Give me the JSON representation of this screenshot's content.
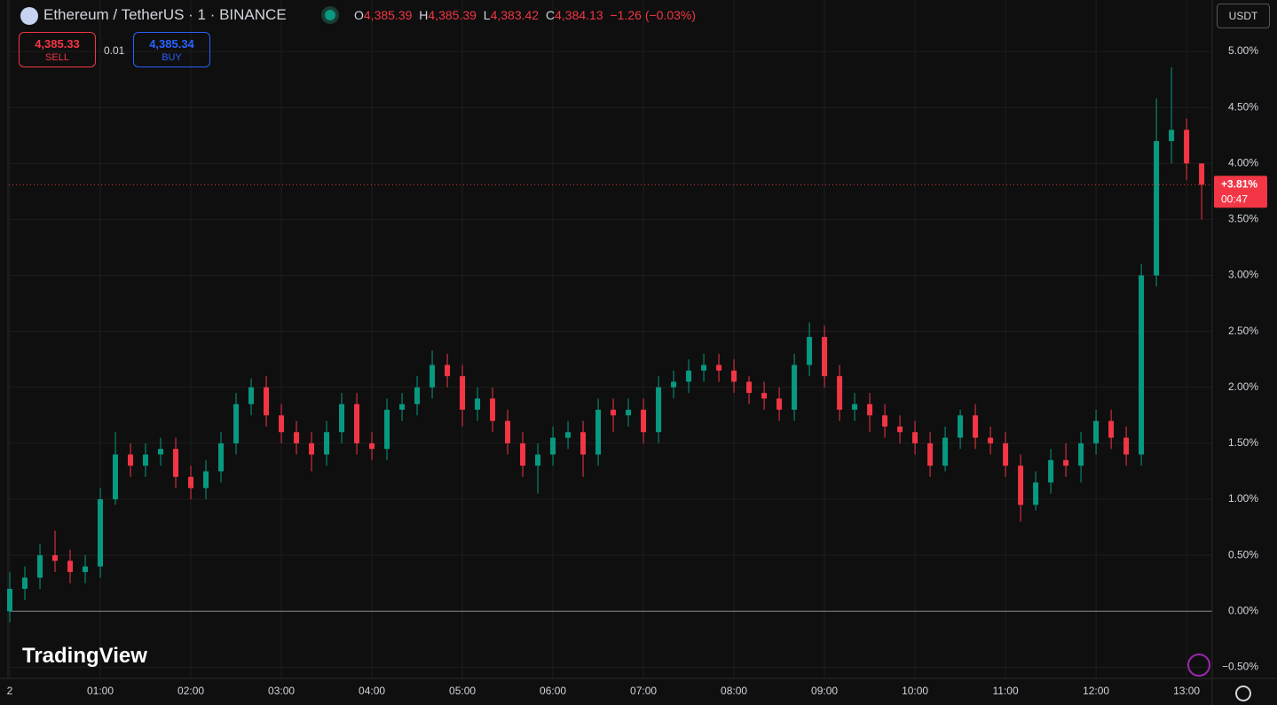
{
  "header": {
    "symbol": "Ethereum / TetherUS · 1 · BINANCE",
    "ohlc": [
      {
        "key": "O",
        "value": "4,385.39"
      },
      {
        "key": "H",
        "value": "4,385.39"
      },
      {
        "key": "L",
        "value": "4,383.42"
      },
      {
        "key": "C",
        "value": "4,384.13"
      }
    ],
    "change": "−1.26 (−0.03%)"
  },
  "trade": {
    "sell_price": "4,385.33",
    "sell": "SELL",
    "spread": "0.01",
    "buy_price": "4,385.34",
    "buy": "BUY"
  },
  "currency": "USDT",
  "brand": "TradingView",
  "chart_data": {
    "type": "candlestick",
    "x": [
      0,
      10,
      20,
      30,
      40,
      50,
      60,
      70,
      80,
      90,
      100,
      110,
      120,
      130,
      140,
      150,
      160,
      170,
      180,
      190,
      200,
      210,
      220,
      230,
      240,
      250,
      260,
      270,
      280,
      290,
      300,
      310,
      320,
      330,
      340,
      350,
      360,
      370,
      380,
      390,
      400,
      410,
      420,
      430,
      440,
      450,
      460,
      470,
      480,
      490,
      500,
      510,
      520,
      530,
      540,
      550,
      560,
      570,
      580,
      590,
      600,
      610,
      620,
      630,
      640,
      650,
      660,
      670,
      680,
      690,
      700,
      710,
      720,
      730,
      740,
      750,
      760,
      770,
      780,
      790
    ],
    "candles": {
      "open": [
        0,
        0.2,
        0.3,
        0.5,
        0.45,
        0.35,
        0.4,
        1.0,
        1.4,
        1.3,
        1.4,
        1.45,
        1.2,
        1.1,
        1.25,
        1.5,
        1.85,
        2.0,
        1.75,
        1.6,
        1.5,
        1.4,
        1.6,
        1.85,
        1.5,
        1.45,
        1.8,
        1.85,
        2.0,
        2.2,
        2.1,
        1.8,
        1.9,
        1.7,
        1.5,
        1.3,
        1.4,
        1.55,
        1.6,
        1.4,
        1.8,
        1.75,
        1.8,
        1.6,
        2.0,
        2.05,
        2.15,
        2.2,
        2.15,
        2.05,
        1.95,
        1.9,
        1.8,
        2.2,
        2.45,
        2.1,
        1.8,
        1.85,
        1.75,
        1.65,
        1.6,
        1.5,
        1.3,
        1.55,
        1.75,
        1.55,
        1.5,
        1.3,
        0.95,
        1.15,
        1.35,
        1.3,
        1.5,
        1.7,
        1.55,
        1.4,
        3.0,
        4.2,
        4.3,
        4.0
      ],
      "high": [
        0.35,
        0.4,
        0.6,
        0.72,
        0.55,
        0.5,
        1.1,
        1.6,
        1.5,
        1.5,
        1.55,
        1.55,
        1.3,
        1.35,
        1.6,
        1.95,
        2.08,
        2.1,
        1.85,
        1.7,
        1.6,
        1.7,
        1.95,
        1.95,
        1.6,
        1.9,
        1.95,
        2.1,
        2.33,
        2.3,
        2.2,
        2.0,
        2.0,
        1.8,
        1.6,
        1.5,
        1.65,
        1.7,
        1.7,
        1.9,
        1.9,
        1.9,
        1.9,
        2.1,
        2.15,
        2.25,
        2.3,
        2.3,
        2.25,
        2.1,
        2.05,
        2.0,
        2.3,
        2.58,
        2.55,
        2.2,
        1.95,
        1.95,
        1.85,
        1.75,
        1.7,
        1.6,
        1.65,
        1.8,
        1.85,
        1.65,
        1.6,
        1.4,
        1.25,
        1.45,
        1.5,
        1.6,
        1.8,
        1.8,
        1.65,
        3.1,
        4.58,
        4.86,
        4.4,
        4.0
      ],
      "low": [
        -0.1,
        0.1,
        0.2,
        0.35,
        0.25,
        0.25,
        0.3,
        0.95,
        1.2,
        1.2,
        1.3,
        1.1,
        1.0,
        1.0,
        1.15,
        1.4,
        1.75,
        1.65,
        1.5,
        1.4,
        1.25,
        1.3,
        1.5,
        1.4,
        1.35,
        1.35,
        1.7,
        1.75,
        1.9,
        2.0,
        1.65,
        1.7,
        1.6,
        1.4,
        1.2,
        1.05,
        1.3,
        1.45,
        1.2,
        1.3,
        1.6,
        1.65,
        1.5,
        1.5,
        1.9,
        1.95,
        2.05,
        2.05,
        1.95,
        1.85,
        1.8,
        1.7,
        1.7,
        2.1,
        2.0,
        1.7,
        1.7,
        1.6,
        1.55,
        1.5,
        1.4,
        1.2,
        1.25,
        1.45,
        1.45,
        1.4,
        1.2,
        0.8,
        0.9,
        1.05,
        1.2,
        1.15,
        1.4,
        1.45,
        1.3,
        1.3,
        2.9,
        4.0,
        3.85,
        3.5
      ],
      "close": [
        0.2,
        0.3,
        0.5,
        0.45,
        0.35,
        0.4,
        1.0,
        1.4,
        1.3,
        1.4,
        1.45,
        1.2,
        1.1,
        1.25,
        1.5,
        1.85,
        2.0,
        1.75,
        1.6,
        1.5,
        1.4,
        1.6,
        1.85,
        1.5,
        1.45,
        1.8,
        1.85,
        2.0,
        2.2,
        2.1,
        1.8,
        1.9,
        1.7,
        1.5,
        1.3,
        1.4,
        1.55,
        1.6,
        1.4,
        1.8,
        1.75,
        1.8,
        1.6,
        2.0,
        2.05,
        2.15,
        2.2,
        2.15,
        2.05,
        1.95,
        1.9,
        1.8,
        2.2,
        2.45,
        2.1,
        1.8,
        1.85,
        1.75,
        1.65,
        1.6,
        1.5,
        1.3,
        1.55,
        1.75,
        1.55,
        1.5,
        1.3,
        0.95,
        1.15,
        1.35,
        1.3,
        1.5,
        1.7,
        1.55,
        1.4,
        3.0,
        4.2,
        4.3,
        4.0,
        3.81
      ]
    },
    "up_color": "#089981",
    "down_color": "#f23645",
    "xlim": [
      -0.6,
      797
    ],
    "xticks": [
      {
        "value": 0,
        "label": "2"
      },
      {
        "value": 60,
        "label": "01:00"
      },
      {
        "value": 120,
        "label": "02:00"
      },
      {
        "value": 180,
        "label": "03:00"
      },
      {
        "value": 240,
        "label": "04:00"
      },
      {
        "value": 300,
        "label": "05:00"
      },
      {
        "value": 360,
        "label": "06:00"
      },
      {
        "value": 420,
        "label": "07:00"
      },
      {
        "value": 480,
        "label": "08:00"
      },
      {
        "value": 540,
        "label": "09:00"
      },
      {
        "value": 600,
        "label": "10:00"
      },
      {
        "value": 660,
        "label": "11:00"
      },
      {
        "value": 720,
        "label": "12:00"
      },
      {
        "value": 780,
        "label": "13:00"
      }
    ],
    "ylim": [
      -0.6,
      5.46
    ],
    "yticks": [
      {
        "value": -0.5,
        "label": "−0.50%"
      },
      {
        "value": 0,
        "label": "0.00%"
      },
      {
        "value": 0.5,
        "label": "0.50%"
      },
      {
        "value": 1,
        "label": "1.00%"
      },
      {
        "value": 1.5,
        "label": "1.50%"
      },
      {
        "value": 2,
        "label": "2.00%"
      },
      {
        "value": 2.5,
        "label": "2.50%"
      },
      {
        "value": 3,
        "label": "3.00%"
      },
      {
        "value": 3.5,
        "label": "3.50%"
      },
      {
        "value": 4,
        "label": "4.00%"
      },
      {
        "value": 4.5,
        "label": "4.50%"
      },
      {
        "value": 5,
        "label": "5.00%"
      }
    ],
    "grid": true,
    "baseline": 0,
    "last_value": 3.81,
    "last_label": "+3.81%",
    "countdown": "00:47"
  }
}
